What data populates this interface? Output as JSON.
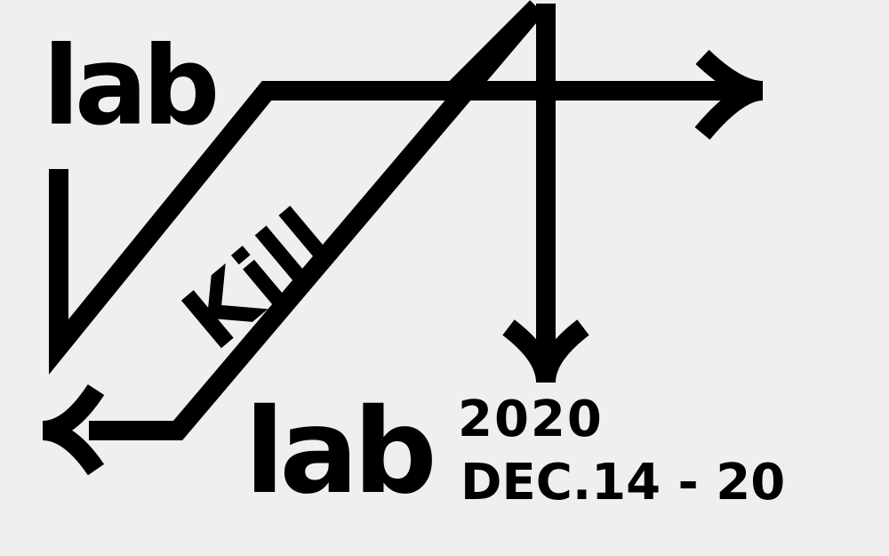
{
  "poster": {
    "title_top": "lab",
    "title_middle": "Kill",
    "title_bottom": "lab",
    "year": "2020",
    "dates": "DEC.14 - 20"
  },
  "colors": {
    "background": "#efefef",
    "ink": "#000000"
  },
  "icons": [
    "arrow-right-icon",
    "arrow-down-icon",
    "arrow-left-icon"
  ]
}
